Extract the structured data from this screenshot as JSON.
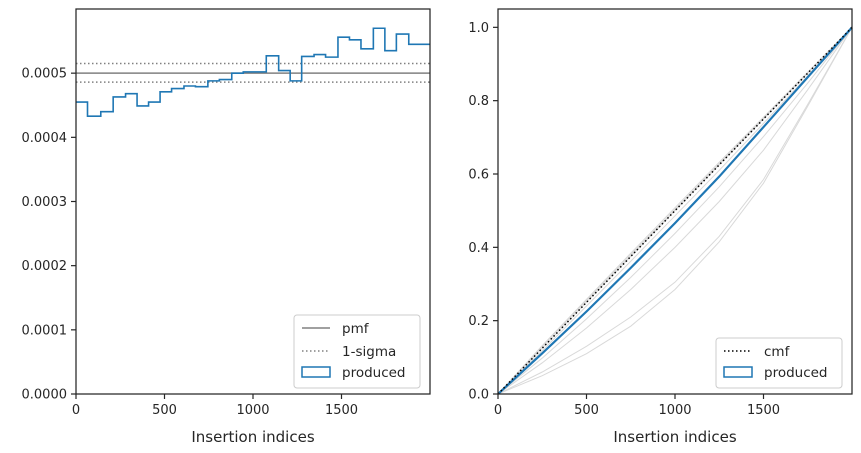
{
  "chart_data": [
    {
      "type": "line",
      "subtype": "step-histogram",
      "xlabel": "Insertion indices",
      "ylabel": "",
      "xlim": [
        0,
        2000
      ],
      "ylim": [
        0,
        0.0006
      ],
      "xticks": [
        0,
        500,
        1000,
        1500
      ],
      "xtick_labels": [
        "0",
        "500",
        "1000",
        "1500"
      ],
      "yticks": [
        0,
        0.0001,
        0.0002,
        0.0003,
        0.0004,
        0.0005
      ],
      "ytick_labels": [
        "0.0000",
        "0.0001",
        "0.0002",
        "0.0003",
        "0.0004",
        "0.0005"
      ],
      "reference_lines": {
        "pmf": 0.0005,
        "sigma_upper": 0.000515,
        "sigma_lower": 0.000486
      },
      "bin_edges": [
        0,
        65,
        140,
        210,
        280,
        345,
        410,
        475,
        540,
        610,
        675,
        745,
        810,
        880,
        945,
        1010,
        1075,
        1145,
        1210,
        1275,
        1345,
        1410,
        1480,
        1545,
        1610,
        1680,
        1745,
        1810,
        1880,
        1945,
        2000
      ],
      "values": [
        0.000455,
        0.000433,
        0.00044,
        0.000463,
        0.000468,
        0.000449,
        0.000455,
        0.000471,
        0.000476,
        0.00048,
        0.000479,
        0.000488,
        0.00049,
        0.0005,
        0.000502,
        0.000502,
        0.000527,
        0.000504,
        0.000488,
        0.000526,
        0.000529,
        0.000525,
        0.000556,
        0.000552,
        0.000538,
        0.00057,
        0.000535,
        0.000561,
        0.000545,
        0.000545
      ],
      "legend": {
        "position": "lower right",
        "entries": [
          {
            "label": "pmf",
            "style": "solid-line",
            "color": "#808080"
          },
          {
            "label": "1-sigma",
            "style": "dotted-line",
            "color": "#808080"
          },
          {
            "label": "produced",
            "style": "box",
            "color": "#1f77b4"
          }
        ]
      },
      "colors": {
        "produced": "#1f77b4",
        "reference": "#808080"
      }
    },
    {
      "type": "line",
      "xlabel": "Insertion indices",
      "ylabel": "",
      "xlim": [
        0,
        2000
      ],
      "ylim": [
        0,
        1.05
      ],
      "xticks": [
        0,
        500,
        1000,
        1500
      ],
      "xtick_labels": [
        "0",
        "500",
        "1000",
        "1500"
      ],
      "yticks": [
        0,
        0.2,
        0.4,
        0.6,
        0.8,
        1.0
      ],
      "ytick_labels": [
        "0.0",
        "0.2",
        "0.4",
        "0.6",
        "0.8",
        "1.0"
      ],
      "series": [
        {
          "name": "cmf",
          "style": "dotted",
          "color": "#000000",
          "x": [
            0,
            2000
          ],
          "y": [
            0,
            1.0
          ]
        },
        {
          "name": "produced",
          "style": "solid",
          "color": "#1f77b4",
          "x": [
            0,
            250,
            500,
            750,
            1000,
            1250,
            1500,
            1750,
            2000
          ],
          "y": [
            0,
            0.111,
            0.225,
            0.344,
            0.466,
            0.593,
            0.728,
            0.864,
            1.0
          ]
        }
      ],
      "background_curves": [
        {
          "x": [
            0,
            250,
            500,
            750,
            1000,
            1250,
            1500,
            1750,
            2000
          ],
          "y": [
            0,
            0.132,
            0.258,
            0.384,
            0.508,
            0.632,
            0.755,
            0.878,
            1.0
          ]
        },
        {
          "x": [
            0,
            250,
            500,
            750,
            1000,
            1250,
            1500,
            1750,
            2000
          ],
          "y": [
            0,
            0.125,
            0.25,
            0.375,
            0.5,
            0.625,
            0.75,
            0.875,
            1.0
          ]
        },
        {
          "x": [
            0,
            250,
            500,
            750,
            1000,
            1250,
            1500,
            1750,
            2000
          ],
          "y": [
            0,
            0.118,
            0.24,
            0.362,
            0.486,
            0.61,
            0.738,
            0.868,
            1.0
          ]
        },
        {
          "x": [
            0,
            250,
            500,
            750,
            1000,
            1250,
            1500,
            1750,
            2000
          ],
          "y": [
            0,
            0.098,
            0.205,
            0.318,
            0.438,
            0.565,
            0.702,
            0.848,
            1.0
          ]
        },
        {
          "x": [
            0,
            250,
            500,
            750,
            1000,
            1250,
            1500,
            1750,
            2000
          ],
          "y": [
            0,
            0.085,
            0.18,
            0.285,
            0.4,
            0.525,
            0.665,
            0.83,
            1.0
          ]
        },
        {
          "x": [
            0,
            250,
            500,
            750,
            1000,
            1250,
            1500,
            1750,
            2000
          ],
          "y": [
            0,
            0.06,
            0.13,
            0.21,
            0.305,
            0.43,
            0.585,
            0.79,
            1.0
          ]
        },
        {
          "x": [
            0,
            250,
            500,
            750,
            1000,
            1250,
            1500,
            1750,
            2000
          ],
          "y": [
            0,
            0.05,
            0.11,
            0.185,
            0.285,
            0.415,
            0.575,
            0.785,
            1.0
          ]
        },
        {
          "x": [
            0,
            250,
            500,
            750,
            1000,
            1250,
            1500,
            1750,
            2000
          ],
          "y": [
            0,
            0.13,
            0.255,
            0.38,
            0.503,
            0.628,
            0.752,
            0.876,
            1.0
          ]
        }
      ],
      "legend": {
        "position": "lower right",
        "entries": [
          {
            "label": "cmf",
            "style": "dotted-line",
            "color": "#000000"
          },
          {
            "label": "produced",
            "style": "box",
            "color": "#1f77b4"
          }
        ]
      },
      "colors": {
        "produced": "#1f77b4",
        "cmf": "#000000",
        "background": "#d9d9d9"
      }
    }
  ]
}
